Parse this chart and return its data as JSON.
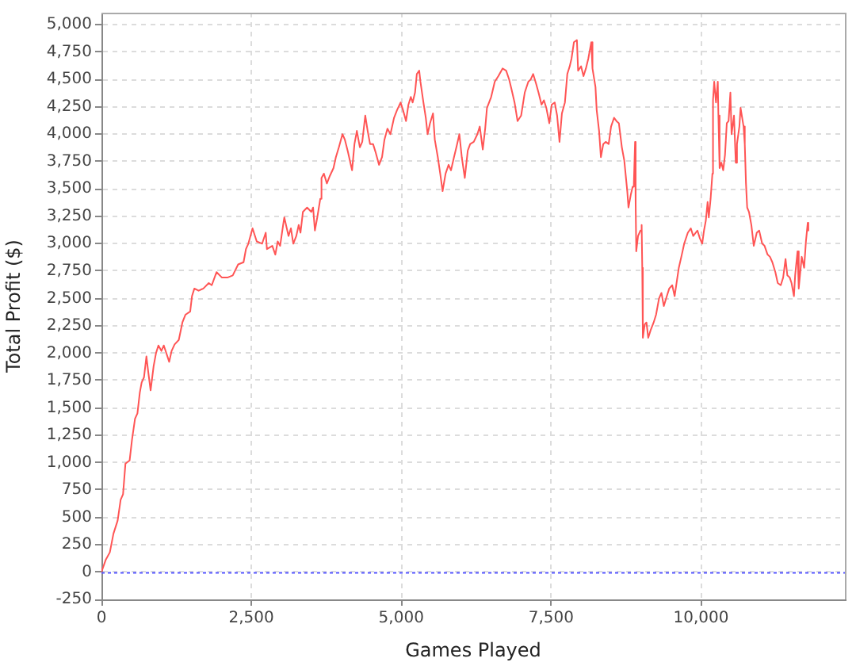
{
  "chart_data": {
    "type": "line",
    "xlabel": "Games Played",
    "ylabel": "Total Profit ($)",
    "color": "#ff5555",
    "marker": "none",
    "grid": true,
    "xlim": [
      0,
      12400
    ],
    "ylim": [
      -250,
      5110
    ],
    "xticks": [
      0,
      {
        "value": 2500,
        "label": "2,500"
      },
      {
        "value": 5000,
        "label": "5,000"
      },
      {
        "value": 7500,
        "label": "7,500"
      },
      {
        "value": 10000,
        "label": "10,000"
      }
    ],
    "yticks": [
      -250,
      0,
      250,
      500,
      750,
      {
        "value": 1000,
        "label": "1,000"
      },
      {
        "value": 1250,
        "label": "1,250"
      },
      {
        "value": 1500,
        "label": "1,500"
      },
      {
        "value": 1750,
        "label": "1,750"
      },
      {
        "value": 2000,
        "label": "2,000"
      },
      {
        "value": 2250,
        "label": "2,250"
      },
      {
        "value": 2500,
        "label": "2,500"
      },
      {
        "value": 2750,
        "label": "2,750"
      },
      {
        "value": 3000,
        "label": "3,000"
      },
      {
        "value": 3250,
        "label": "3,250"
      },
      {
        "value": 3500,
        "label": "3,500"
      },
      {
        "value": 3750,
        "label": "3,750"
      },
      {
        "value": 4000,
        "label": "4,000"
      },
      {
        "value": 4250,
        "label": "4,250"
      },
      {
        "value": 4500,
        "label": "4,500"
      },
      {
        "value": 4750,
        "label": "4,750"
      },
      {
        "value": 5000,
        "label": "5,000"
      }
    ],
    "ref_lines": [
      {
        "axis": "y",
        "value": 0,
        "color": "#5555ff",
        "line_style": "dotted"
      }
    ],
    "x": [
      0,
      70,
      140,
      200,
      270,
      320,
      360,
      400,
      470,
      510,
      560,
      600,
      640,
      670,
      710,
      750,
      780,
      820,
      870,
      910,
      950,
      1000,
      1040,
      1130,
      1170,
      1220,
      1290,
      1350,
      1400,
      1480,
      1510,
      1550,
      1620,
      1700,
      1790,
      1840,
      1920,
      2010,
      2100,
      2190,
      2280,
      2370,
      2410,
      2450,
      2520,
      2590,
      2680,
      2740,
      2760,
      2850,
      2900,
      2940,
      2980,
      3030,
      3050,
      3120,
      3160,
      3200,
      3250,
      3290,
      3320,
      3360,
      3430,
      3500,
      3530,
      3560,
      3600,
      3650,
      3670,
      3710,
      3760,
      3810,
      3870,
      3910,
      3960,
      4020,
      4060,
      4110,
      4180,
      4220,
      4260,
      4310,
      4350,
      4400,
      4440,
      4480,
      4530,
      4570,
      4630,
      4680,
      4720,
      4770,
      4820,
      4880,
      4930,
      4990,
      5030,
      5080,
      5120,
      5160,
      5190,
      5230,
      5260,
      5300,
      5320,
      5370,
      5410,
      5440,
      5480,
      5530,
      5560,
      5610,
      5650,
      5690,
      5740,
      5790,
      5830,
      5880,
      5920,
      5970,
      6010,
      6060,
      6110,
      6150,
      6210,
      6270,
      6310,
      6360,
      6400,
      6430,
      6500,
      6560,
      6620,
      6690,
      6750,
      6800,
      6840,
      6890,
      6940,
      7000,
      7060,
      7120,
      7160,
      7200,
      7250,
      7290,
      7340,
      7380,
      7420,
      7470,
      7510,
      7560,
      7600,
      7640,
      7680,
      7730,
      7770,
      7810,
      7840,
      7880,
      7930,
      7950,
      8000,
      8040,
      8080,
      8120,
      8170,
      8190,
      8240,
      8260,
      8300,
      8330,
      8370,
      8410,
      8460,
      8500,
      8550,
      8590,
      8630,
      8680,
      8720,
      8770,
      8790,
      8830,
      8860,
      8880,
      8900,
      8910,
      8920,
      8950,
      8990,
      9010,
      9020,
      9030,
      9060,
      9090,
      9120,
      9160,
      9210,
      9250,
      9300,
      9340,
      9380,
      9430,
      9470,
      9520,
      9560,
      9600,
      9630,
      9680,
      9720,
      9780,
      9830,
      9870,
      9940,
      9980,
      10020,
      10050,
      10080,
      10110,
      10130,
      10160,
      10190,
      10200,
      10220,
      10250,
      10280,
      10290,
      10310,
      10340,
      10370,
      10400,
      10430,
      10460,
      10490,
      10510,
      10550,
      10580,
      10600,
      10640,
      10660,
      10710,
      10730,
      10750,
      10770,
      10800,
      10840,
      10880,
      10930,
      10970,
      11020,
      11060,
      11110,
      11150,
      11190,
      11240,
      11280,
      11330,
      11370,
      11410,
      11440,
      11480,
      11510,
      11550,
      11570,
      11610,
      11630,
      11680,
      11720,
      11750,
      11780,
      11790
    ],
    "values": [
      0,
      110,
      180,
      350,
      470,
      660,
      710,
      990,
      1020,
      1210,
      1400,
      1450,
      1640,
      1730,
      1780,
      1970,
      1830,
      1660,
      1880,
      2000,
      2070,
      2020,
      2070,
      1920,
      2020,
      2080,
      2120,
      2280,
      2350,
      2380,
      2520,
      2590,
      2570,
      2590,
      2640,
      2620,
      2740,
      2690,
      2690,
      2710,
      2810,
      2830,
      2950,
      3000,
      3140,
      3020,
      3000,
      3100,
      2950,
      2980,
      2900,
      3020,
      2980,
      3170,
      3240,
      3070,
      3140,
      3000,
      3070,
      3170,
      3100,
      3290,
      3330,
      3290,
      3330,
      3120,
      3240,
      3410,
      3600,
      3640,
      3550,
      3620,
      3690,
      3790,
      3880,
      4000,
      3950,
      3840,
      3670,
      3910,
      4030,
      3880,
      3930,
      4170,
      4030,
      3910,
      3910,
      3840,
      3720,
      3790,
      3950,
      4050,
      4000,
      4150,
      4220,
      4290,
      4220,
      4120,
      4270,
      4340,
      4290,
      4380,
      4550,
      4580,
      4480,
      4290,
      4150,
      4000,
      4100,
      4190,
      3950,
      3790,
      3640,
      3480,
      3640,
      3720,
      3670,
      3790,
      3880,
      4000,
      3790,
      3600,
      3850,
      3910,
      3930,
      4000,
      4070,
      3860,
      4050,
      4240,
      4340,
      4480,
      4530,
      4600,
      4580,
      4500,
      4410,
      4290,
      4120,
      4170,
      4380,
      4480,
      4500,
      4550,
      4460,
      4380,
      4270,
      4310,
      4240,
      4100,
      4270,
      4290,
      4170,
      3930,
      4190,
      4290,
      4550,
      4620,
      4690,
      4840,
      4860,
      4580,
      4620,
      4530,
      4600,
      4690,
      4840,
      4600,
      4430,
      4220,
      4030,
      3790,
      3910,
      3930,
      3910,
      4070,
      4150,
      4120,
      4100,
      3880,
      3760,
      3480,
      3330,
      3450,
      3520,
      3550,
      3930,
      3360,
      2930,
      3070,
      3120,
      3170,
      2780,
      2140,
      2260,
      2280,
      2140,
      2210,
      2280,
      2350,
      2500,
      2550,
      2430,
      2520,
      2590,
      2620,
      2520,
      2670,
      2780,
      2900,
      3000,
      3100,
      3140,
      3070,
      3120,
      3050,
      3000,
      3120,
      3210,
      3380,
      3240,
      3410,
      3640,
      4310,
      4480,
      4290,
      4480,
      4170,
      3690,
      3740,
      3670,
      3810,
      4100,
      4120,
      4380,
      4000,
      4170,
      3740,
      3910,
      4070,
      4240,
      4070,
      3910,
      3550,
      3330,
      3290,
      3170,
      2980,
      3100,
      3120,
      3000,
      2980,
      2900,
      2880,
      2830,
      2740,
      2640,
      2620,
      2690,
      2860,
      2710,
      2690,
      2640,
      2520,
      2710,
      2930,
      2590,
      2880,
      2780,
      3020,
      3190,
      3120
    ]
  }
}
